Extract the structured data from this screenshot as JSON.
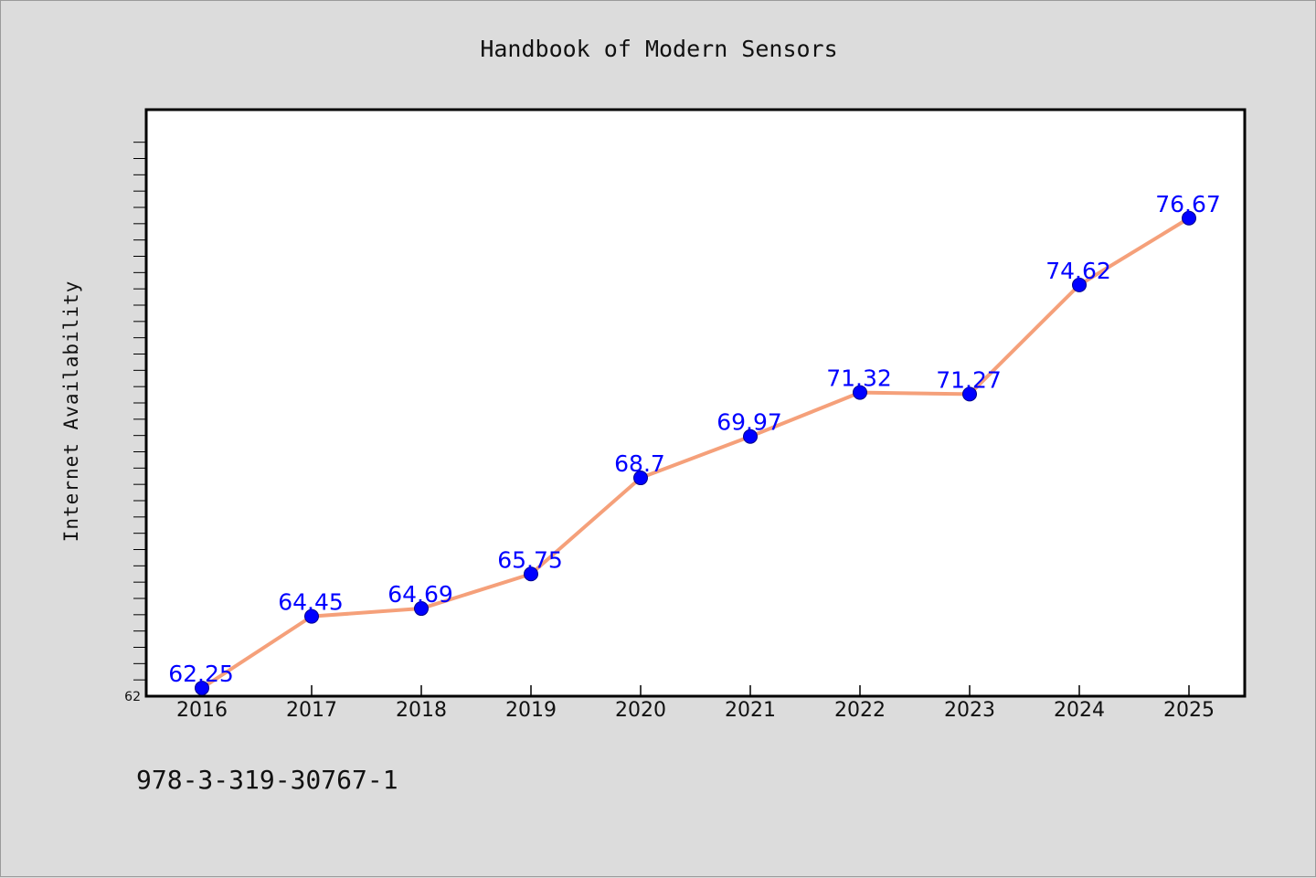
{
  "chart_data": {
    "type": "line",
    "title": "Handbook of Modern Sensors",
    "xlabel": "",
    "ylabel": "Internet Availability",
    "categories": [
      "2016",
      "2017",
      "2018",
      "2019",
      "2020",
      "2021",
      "2022",
      "2023",
      "2024",
      "2025"
    ],
    "series": [
      {
        "values": [
          62.25,
          64.45,
          64.69,
          65.75,
          68.7,
          69.97,
          71.32,
          71.27,
          74.62,
          76.67
        ],
        "data_labels": [
          "62.25",
          "64.45",
          "64.69",
          "65.75",
          "68.7",
          "69.97",
          "71.32",
          "71.27",
          "74.62",
          "76.67"
        ]
      }
    ],
    "ylim": [
      62,
      80
    ],
    "ytick_labels": [
      "62"
    ],
    "grid": false,
    "legend": "none",
    "colors": {
      "line": "#f5a07a",
      "marker": "#0000ff",
      "data_label": "#0000ff",
      "background": "#dcdcdc",
      "plot_background": "#ffffff"
    }
  },
  "footer": {
    "isbn": "978-3-319-30767-1"
  }
}
